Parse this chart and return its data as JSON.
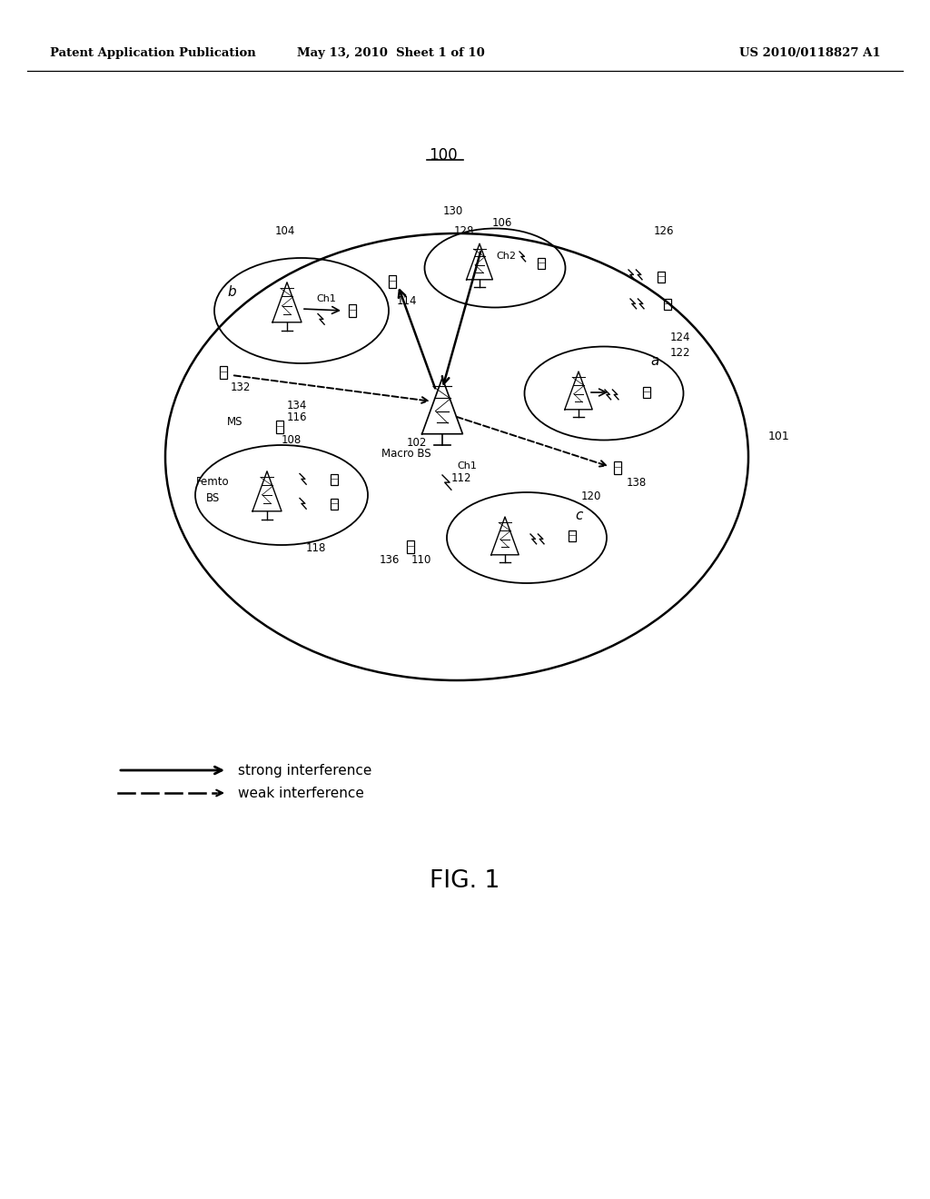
{
  "bg_color": "#ffffff",
  "line_color": "#000000",
  "header_left": "Patent Application Publication",
  "header_mid": "May 13, 2010  Sheet 1 of 10",
  "header_right": "US 2010/0118827 A1",
  "figure_label": "FIG. 1",
  "diagram_label": "100",
  "legend_strong": "strong interference",
  "legend_weak": "weak interference"
}
